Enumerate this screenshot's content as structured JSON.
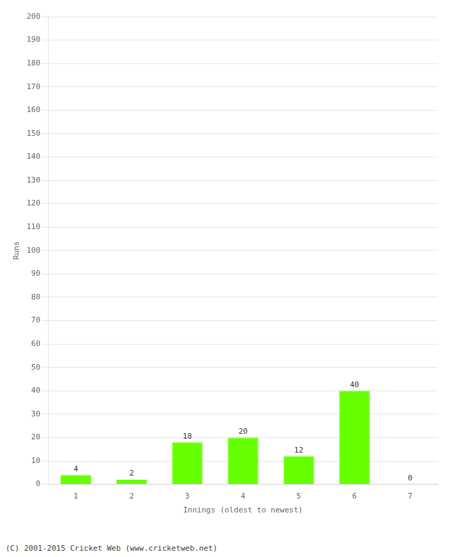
{
  "chart_data": {
    "type": "bar",
    "xlabel": "Innings (oldest to newest)",
    "ylabel": "Runs",
    "categories": [
      "1",
      "2",
      "3",
      "4",
      "5",
      "6",
      "7"
    ],
    "values": [
      4,
      2,
      18,
      20,
      12,
      40,
      0
    ],
    "color": "#66ff00",
    "ylim": [
      0,
      200
    ],
    "yticks": [
      0,
      10,
      20,
      30,
      40,
      50,
      60,
      70,
      80,
      90,
      100,
      110,
      120,
      130,
      140,
      150,
      160,
      170,
      180,
      190,
      200
    ],
    "grid": true,
    "data_labels": true,
    "annotations": [
      "(C) 2001-2015 Cricket Web (www.cricketweb.net)"
    ]
  }
}
